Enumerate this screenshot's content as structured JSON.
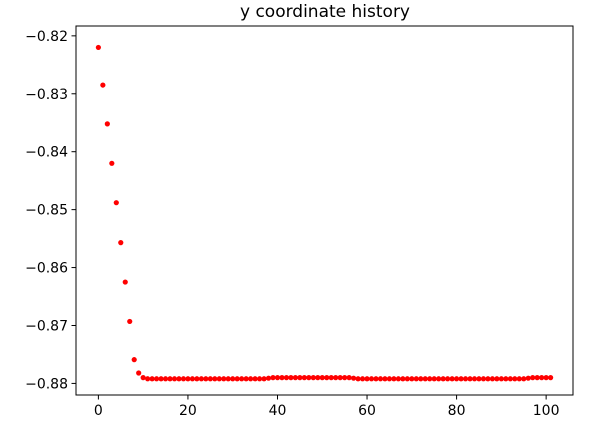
{
  "chart_data": {
    "type": "scatter",
    "title": "y coordinate history",
    "xlabel": "",
    "ylabel": "",
    "xlim": [
      -5,
      106
    ],
    "ylim": [
      -0.882,
      -0.8183
    ],
    "x_ticks": [
      0,
      20,
      40,
      60,
      80,
      100
    ],
    "y_ticks": [
      -0.82,
      -0.83,
      -0.84,
      -0.85,
      -0.86,
      -0.87,
      -0.88
    ],
    "y_tick_labels": [
      "−0.82",
      "−0.83",
      "−0.84",
      "−0.85",
      "−0.86",
      "−0.87",
      "−0.88"
    ],
    "grid": false,
    "legend": "none",
    "series": [
      {
        "color": "#ff0000",
        "marker": "point",
        "x": [
          0,
          1,
          2,
          3,
          4,
          5,
          6,
          7,
          8,
          9,
          10,
          11,
          12,
          13,
          14,
          15,
          16,
          17,
          18,
          19,
          20,
          21,
          22,
          23,
          24,
          25,
          26,
          27,
          28,
          29,
          30,
          31,
          32,
          33,
          34,
          35,
          36,
          37,
          38,
          39,
          40,
          41,
          42,
          43,
          44,
          45,
          46,
          47,
          48,
          49,
          50,
          51,
          52,
          53,
          54,
          55,
          56,
          57,
          58,
          59,
          60,
          61,
          62,
          63,
          64,
          65,
          66,
          67,
          68,
          69,
          70,
          71,
          72,
          73,
          74,
          75,
          76,
          77,
          78,
          79,
          80,
          81,
          82,
          83,
          84,
          85,
          86,
          87,
          88,
          89,
          90,
          91,
          92,
          93,
          94,
          95,
          96,
          97,
          98,
          99,
          100,
          101
        ],
        "y": [
          -0.822,
          -0.8285,
          -0.8352,
          -0.842,
          -0.8488,
          -0.8557,
          -0.8625,
          -0.8693,
          -0.8759,
          -0.8782,
          -0.879,
          -0.8792,
          -0.8792,
          -0.8792,
          -0.8792,
          -0.8792,
          -0.8792,
          -0.8792,
          -0.8792,
          -0.8792,
          -0.8792,
          -0.8792,
          -0.8792,
          -0.8792,
          -0.8792,
          -0.8792,
          -0.8792,
          -0.8792,
          -0.8792,
          -0.8792,
          -0.8792,
          -0.8792,
          -0.8792,
          -0.8792,
          -0.8792,
          -0.8792,
          -0.8792,
          -0.8792,
          -0.8791,
          -0.879,
          -0.879,
          -0.879,
          -0.879,
          -0.879,
          -0.879,
          -0.879,
          -0.879,
          -0.879,
          -0.879,
          -0.879,
          -0.879,
          -0.879,
          -0.879,
          -0.879,
          -0.879,
          -0.879,
          -0.879,
          -0.8791,
          -0.8792,
          -0.8792,
          -0.8792,
          -0.8792,
          -0.8792,
          -0.8792,
          -0.8792,
          -0.8792,
          -0.8792,
          -0.8792,
          -0.8792,
          -0.8792,
          -0.8792,
          -0.8792,
          -0.8792,
          -0.8792,
          -0.8792,
          -0.8792,
          -0.8792,
          -0.8792,
          -0.8792,
          -0.8792,
          -0.8792,
          -0.8792,
          -0.8792,
          -0.8792,
          -0.8792,
          -0.8792,
          -0.8792,
          -0.8792,
          -0.8792,
          -0.8792,
          -0.8792,
          -0.8792,
          -0.8792,
          -0.8792,
          -0.8792,
          -0.8792,
          -0.8791,
          -0.879,
          -0.879,
          -0.879,
          -0.879,
          -0.879
        ]
      }
    ]
  }
}
